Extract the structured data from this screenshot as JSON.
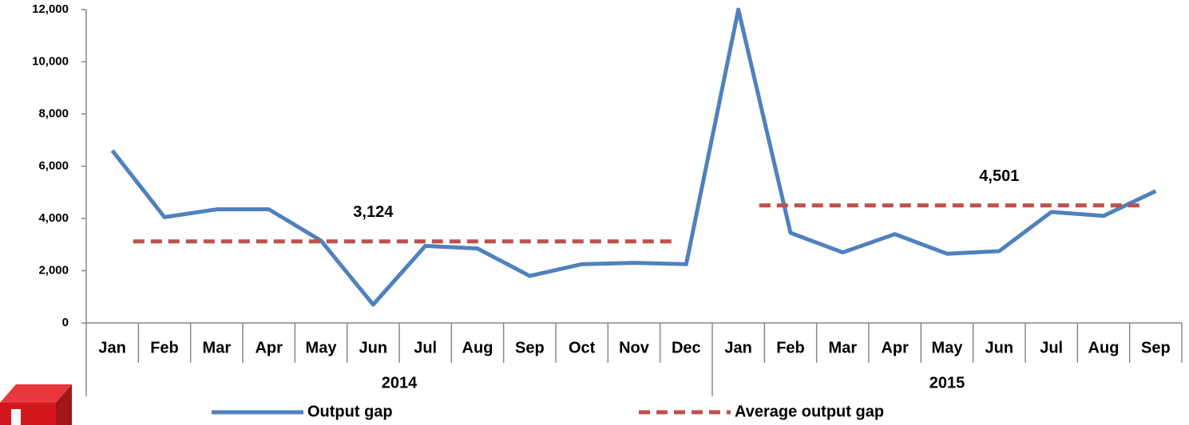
{
  "chart_data": {
    "type": "line",
    "groups": [
      {
        "name": "2014",
        "categories": [
          "Jan",
          "Feb",
          "Mar",
          "Apr",
          "May",
          "Jun",
          "Jul",
          "Aug",
          "Sep",
          "Oct",
          "Nov",
          "Dec"
        ]
      },
      {
        "name": "2015",
        "categories": [
          "Jan",
          "Feb",
          "Mar",
          "Apr",
          "May",
          "Jun",
          "Jul",
          "Aug",
          "Sep"
        ]
      }
    ],
    "series": [
      {
        "name": "Output gap",
        "color": "#4f81bd",
        "style": "solid",
        "values": [
          6600,
          4050,
          4350,
          4350,
          3150,
          700,
          2950,
          2850,
          1800,
          2250,
          2300,
          2250,
          12000,
          3450,
          2700,
          3400,
          2650,
          2750,
          4250,
          4100,
          5050
        ]
      },
      {
        "name": "Average output gap",
        "color": "#c0504d",
        "style": "dashed",
        "values": [
          3124,
          3124,
          3124,
          3124,
          3124,
          3124,
          3124,
          3124,
          3124,
          3124,
          3124,
          3124,
          4501,
          4501,
          4501,
          4501,
          4501,
          4501,
          4501,
          4501,
          4501
        ],
        "value_labels": [
          null,
          null,
          null,
          null,
          null,
          "3,124",
          null,
          null,
          null,
          null,
          null,
          null,
          null,
          null,
          null,
          null,
          null,
          "4,501",
          null,
          null,
          null
        ]
      }
    ],
    "ylim": [
      0,
      12000
    ],
    "yticks": [
      0,
      {
        "value": 2000,
        "label": "2,000"
      },
      {
        "value": 4000,
        "label": "4,000"
      },
      {
        "value": 6000,
        "label": "6,000"
      },
      {
        "value": 8000,
        "label": "8,000"
      },
      {
        "value": 10000,
        "label": "10,000"
      },
      {
        "value": 12000,
        "label": "12,000"
      }
    ],
    "grid": false
  }
}
